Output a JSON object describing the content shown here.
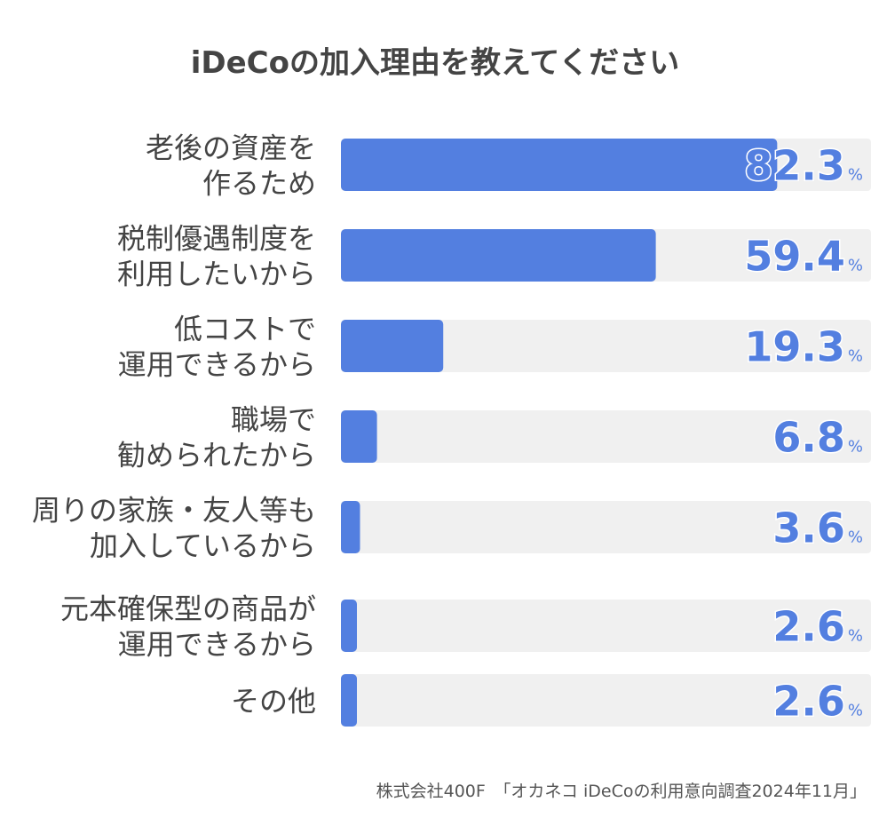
{
  "chart_data": {
    "type": "bar",
    "orientation": "horizontal",
    "title": "iDeCoの加入理由を教えてください",
    "categories": [
      [
        "老後の資産を",
        "作るため"
      ],
      [
        "税制優遇制度を",
        "利用したいから"
      ],
      [
        "低コストで",
        "運用できるから"
      ],
      [
        "職場で",
        "勧められたから"
      ],
      [
        "周りの家族・友人等も",
        "加入しているから"
      ],
      [
        "元本確保型の商品が",
        "運用できるから"
      ],
      [
        "その他"
      ]
    ],
    "values": [
      82.3,
      59.4,
      19.3,
      6.8,
      3.6,
      2.6,
      2.6
    ],
    "value_labels": [
      "82.3",
      "59.4",
      "19.3",
      "6.8",
      "3.6",
      "2.6",
      "2.6"
    ],
    "unit": "%",
    "xlim": [
      0,
      100
    ],
    "grid": false,
    "source": "株式会社400F　「オカネコ iDeCoの利用意向調査2024年11月」",
    "colors": {
      "bar": "#537fe0",
      "track": "#f0f0f0",
      "value_text": "#537fe0",
      "label_text": "#444444",
      "title_text": "#444444",
      "source_text": "#555555"
    }
  }
}
